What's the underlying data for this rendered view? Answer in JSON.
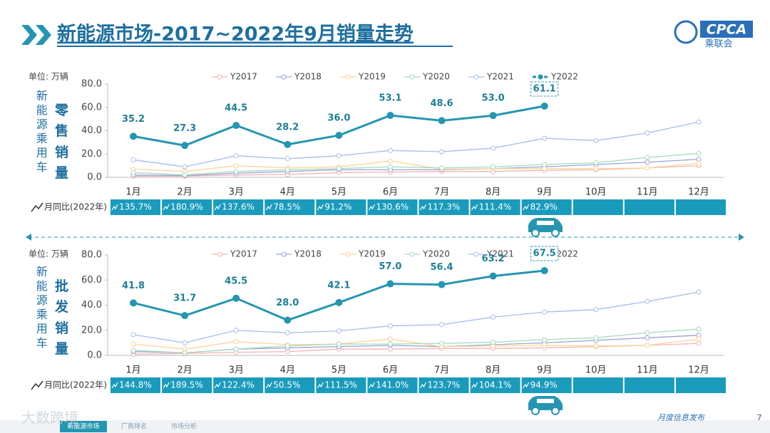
{
  "header": {
    "title": "新能源市场-2017~2022年9月销量走势",
    "logo": "CPCA",
    "logo_sub": "乘联会"
  },
  "footer": {
    "watermark": "大数跨境",
    "tabs": [
      "新能源市场",
      "厂商排名",
      "市场分析"
    ],
    "release": "月度信息发布",
    "page": "7"
  },
  "chart_data": [
    {
      "type": "line",
      "unit": "单位: 万辆",
      "side_label": "新能源乘用车",
      "metric_label": "零售销量",
      "categories": [
        "1月",
        "2月",
        "3月",
        "4月",
        "5月",
        "6月",
        "7月",
        "8月",
        "9月",
        "10月",
        "11月",
        "12月"
      ],
      "ylim": [
        0,
        80
      ],
      "yticks": [
        {
          "value": 0,
          "label": "0.0"
        },
        {
          "value": 20,
          "label": "20.0"
        },
        {
          "value": 40,
          "label": "40.0"
        },
        {
          "value": 60,
          "label": "60.0"
        },
        {
          "value": 80,
          "label": "80.0"
        }
      ],
      "grid": false,
      "series": [
        {
          "name": "Y2017",
          "color": "#f4b3b3",
          "values": [
            1,
            1,
            2,
            2.5,
            4,
            4.5,
            5,
            5,
            6,
            6.5,
            8,
            10
          ]
        },
        {
          "name": "Y2018",
          "color": "#9aa3d6",
          "values": [
            2,
            1.5,
            3.5,
            5,
            6.5,
            6.5,
            6.5,
            7.5,
            9,
            11,
            13,
            15.5
          ]
        },
        {
          "name": "Y2019",
          "color": "#ffd394",
          "values": [
            7,
            5,
            10,
            8,
            9,
            14,
            7,
            7.5,
            7.5,
            7.5,
            8,
            12
          ]
        },
        {
          "name": "Y2020",
          "color": "#a3dbbd",
          "values": [
            4,
            2,
            5,
            6.5,
            7.5,
            9,
            8,
            9,
            11,
            12.5,
            17,
            20.5
          ]
        },
        {
          "name": "Y2021",
          "color": "#a8bde8",
          "values": [
            15,
            9,
            18.5,
            16,
            18.5,
            23,
            22,
            25,
            33.5,
            31.5,
            38,
            47.5
          ]
        },
        {
          "name": "Y2022",
          "color": "#2596b1",
          "values": [
            35.2,
            27.3,
            44.5,
            28.2,
            36.0,
            53.1,
            48.6,
            53.0,
            61.1,
            null,
            null,
            null
          ],
          "value_labels": [
            "35.2",
            "27.3",
            "44.5",
            "28.2",
            "36.0",
            "53.1",
            "48.6",
            "53.0",
            "61.1",
            null,
            null,
            null
          ]
        }
      ],
      "yoy_label": "月同比(2022年)",
      "yoy": [
        "135.7%",
        "180.9%",
        "137.6%",
        "78.5%",
        "91.2%",
        "130.6%",
        "117.3%",
        "111.4%",
        "82.9%"
      ]
    },
    {
      "type": "line",
      "unit": "单位: 万辆",
      "side_label": "新能源乘用车",
      "metric_label": "批发销量",
      "categories": [
        "1月",
        "2月",
        "3月",
        "4月",
        "5月",
        "6月",
        "7月",
        "8月",
        "9月",
        "10月",
        "11月",
        "12月"
      ],
      "ylim": [
        0,
        80
      ],
      "yticks": [
        {
          "value": 0,
          "label": "0.0"
        },
        {
          "value": 20,
          "label": "20.0"
        },
        {
          "value": 40,
          "label": "40.0"
        },
        {
          "value": 60,
          "label": "60.0"
        },
        {
          "value": 80,
          "label": "80.0"
        }
      ],
      "grid": false,
      "series": [
        {
          "name": "Y2017",
          "color": "#f4b3b3",
          "values": [
            1,
            1.5,
            2.5,
            3,
            5,
            5,
            5.5,
            5.5,
            6,
            7,
            8,
            9.5
          ]
        },
        {
          "name": "Y2018",
          "color": "#9aa3d6",
          "values": [
            3,
            2,
            5,
            6,
            7,
            8,
            7,
            8.5,
            10,
            12,
            14,
            16
          ]
        },
        {
          "name": "Y2019",
          "color": "#ffd394",
          "values": [
            9,
            5,
            11,
            8.5,
            9,
            13,
            7,
            7.5,
            8,
            7.5,
            8,
            13
          ]
        },
        {
          "name": "Y2020",
          "color": "#a3dbbd",
          "values": [
            4,
            2,
            5,
            7.5,
            9,
            9,
            9.5,
            10.5,
            12.5,
            14,
            18,
            21
          ]
        },
        {
          "name": "Y2021",
          "color": "#a8bde8",
          "values": [
            16.5,
            10,
            20,
            18,
            19.5,
            23.5,
            24.5,
            30.5,
            34.5,
            36.5,
            43,
            50.5
          ]
        },
        {
          "name": "Y2022",
          "color": "#2596b1",
          "values": [
            41.8,
            31.7,
            45.5,
            28.0,
            42.1,
            57.0,
            56.4,
            63.2,
            67.5,
            null,
            null,
            null
          ],
          "value_labels": [
            "41.8",
            "31.7",
            "45.5",
            "28.0",
            "42.1",
            "57.0",
            "56.4",
            "63.2",
            "67.5",
            null,
            null,
            null
          ]
        }
      ],
      "yoy_label": "月同比(2022年)",
      "yoy": [
        "144.8%",
        "189.5%",
        "122.4%",
        "50.5%",
        "111.5%",
        "141.0%",
        "123.7%",
        "104.1%",
        "94.9%"
      ]
    }
  ]
}
